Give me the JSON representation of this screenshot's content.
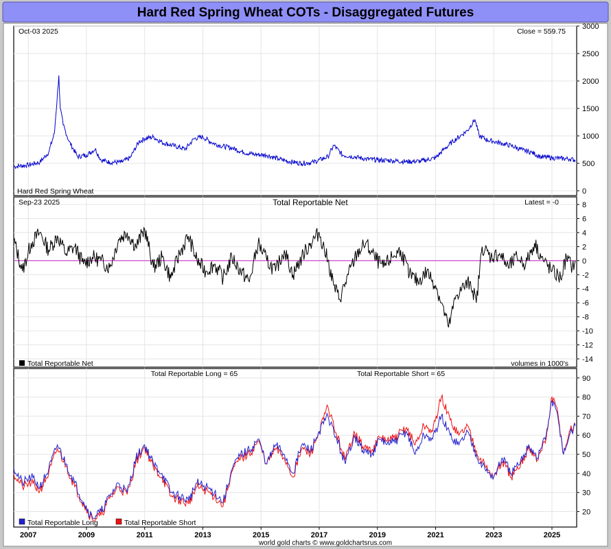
{
  "page_title": "Hard Red Spring Wheat COTs - Disaggregated Futures",
  "footer": "world gold charts © www.goldchartsrus.com",
  "colors": {
    "background": "#c9c9c9",
    "title_bar": "#8f8ff8",
    "panel_bg": "#ffffff",
    "grid": "#e4e4e4",
    "price_line": "#0000cc",
    "net_line": "#000000",
    "zero_line": "#cc33cc",
    "long_line": "#2222cc",
    "short_line": "#ee1111"
  },
  "x_axis": {
    "range": [
      2006.5,
      2025.85
    ],
    "ticks": [
      2007,
      2009,
      2011,
      2013,
      2015,
      2017,
      2019,
      2021,
      2023,
      2025
    ],
    "tick_labels": [
      "2007",
      "2009",
      "2011",
      "2013",
      "2015",
      "2017",
      "2019",
      "2021",
      "2023",
      "2025"
    ]
  },
  "chart_data": [
    {
      "type": "line",
      "name": "price",
      "label_top_left": "Oct-03  2025",
      "label_top_right": "Close = 559.75",
      "legend": "Hard Red Spring Wheat",
      "ylim": [
        0,
        3000
      ],
      "yticks": [
        0,
        500,
        1000,
        1500,
        2000,
        2500,
        3000
      ],
      "ytick_labels": [
        "0",
        "500",
        "1000",
        "1500",
        "2000",
        "2500",
        "3000"
      ],
      "series": [
        {
          "name": "Hard Red Spring Wheat",
          "x": [
            2006.5,
            2007.0,
            2007.4,
            2007.7,
            2007.9,
            2008.05,
            2008.1,
            2008.2,
            2008.4,
            2008.7,
            2009.0,
            2009.3,
            2009.5,
            2009.8,
            2010.2,
            2010.5,
            2010.8,
            2011.0,
            2011.3,
            2011.6,
            2012.0,
            2012.4,
            2012.7,
            2013.0,
            2013.3,
            2013.6,
            2014.0,
            2014.4,
            2014.8,
            2015.2,
            2015.6,
            2016.0,
            2016.4,
            2016.8,
            2017.3,
            2017.5,
            2017.8,
            2018.2,
            2018.6,
            2019.0,
            2019.5,
            2020.0,
            2020.5,
            2021.0,
            2021.3,
            2021.6,
            2021.9,
            2022.1,
            2022.35,
            2022.5,
            2022.8,
            2023.0,
            2023.3,
            2023.6,
            2024.0,
            2024.3,
            2024.6,
            2025.0,
            2025.3,
            2025.6,
            2025.8
          ],
          "y": [
            440,
            470,
            520,
            700,
            1050,
            2100,
            1500,
            1200,
            900,
            620,
            650,
            760,
            560,
            520,
            520,
            600,
            890,
            950,
            980,
            880,
            820,
            760,
            950,
            980,
            880,
            820,
            780,
            700,
            660,
            650,
            580,
            530,
            500,
            520,
            620,
            830,
            650,
            620,
            580,
            560,
            550,
            530,
            540,
            600,
            760,
            900,
            1020,
            1100,
            1300,
            1000,
            920,
            900,
            860,
            820,
            740,
            700,
            620,
            600,
            590,
            580,
            560
          ]
        }
      ]
    },
    {
      "type": "line",
      "name": "net",
      "label_top_left": "Sep-23  2025",
      "title": "Total Reportable Net",
      "label_top_right": "Latest = -0",
      "legend": "Total Reportable Net",
      "units_note": "volumes in 1000's",
      "ylim": [
        -14,
        8
      ],
      "yticks": [
        -14,
        -12,
        -10,
        -8,
        -6,
        -4,
        -2,
        0,
        2,
        4,
        6,
        8
      ],
      "ytick_labels": [
        "-14",
        "-12",
        "-10",
        "-8",
        "-6",
        "-4",
        "-2",
        "0",
        "2",
        "4",
        "6",
        "8"
      ],
      "series": [
        {
          "name": "Total Reportable Net",
          "x": [
            2006.5,
            2006.8,
            2007.1,
            2007.4,
            2007.7,
            2008.0,
            2008.3,
            2008.6,
            2008.9,
            2009.2,
            2009.5,
            2009.8,
            2010.1,
            2010.4,
            2010.7,
            2011.0,
            2011.3,
            2011.6,
            2011.9,
            2012.2,
            2012.5,
            2012.8,
            2013.1,
            2013.4,
            2013.7,
            2014.0,
            2014.3,
            2014.6,
            2014.9,
            2015.2,
            2015.5,
            2015.8,
            2016.1,
            2016.4,
            2016.7,
            2017.0,
            2017.3,
            2017.5,
            2017.7,
            2018.0,
            2018.3,
            2018.6,
            2018.9,
            2019.2,
            2019.5,
            2019.8,
            2020.1,
            2020.4,
            2020.7,
            2021.0,
            2021.2,
            2021.45,
            2021.7,
            2021.9,
            2022.2,
            2022.4,
            2022.6,
            2022.9,
            2023.2,
            2023.5,
            2023.8,
            2024.1,
            2024.4,
            2024.7,
            2025.0,
            2025.3,
            2025.5,
            2025.7,
            2025.8
          ],
          "y": [
            3,
            -1.5,
            2.5,
            4,
            1.5,
            3.5,
            1,
            2,
            -0.5,
            0.5,
            0,
            -1,
            3,
            4,
            2,
            4.5,
            -1,
            0.5,
            -2.5,
            1,
            3.5,
            0,
            -1.5,
            -0.5,
            -2.5,
            0.5,
            -1.5,
            -3,
            2.5,
            0,
            -1.5,
            1.5,
            -2,
            0.5,
            2.5,
            4,
            0,
            -3.5,
            -5.5,
            -2,
            1,
            2.5,
            0.5,
            -1,
            0.5,
            1.5,
            -2,
            -3,
            -1.5,
            -3.5,
            -6,
            -9.5,
            -5,
            -4,
            -3,
            -6,
            2,
            0.5,
            1,
            -1,
            0.5,
            -0.5,
            2.5,
            0,
            -1.5,
            -2.5,
            0.5,
            -1,
            0
          ]
        }
      ]
    },
    {
      "type": "line",
      "name": "long_short",
      "label_long": "Total Reportable Long = 65",
      "label_short": "Total Reportable Short = 65",
      "ylim": [
        13,
        91
      ],
      "yticks": [
        20,
        30,
        40,
        50,
        60,
        70,
        80,
        90
      ],
      "ytick_labels": [
        "20",
        "30",
        "40",
        "50",
        "60",
        "70",
        "80",
        "90"
      ],
      "legend": [
        "Total Reportable Long",
        "Total Reportable Short"
      ],
      "series": [
        {
          "name": "Total Reportable Long",
          "x": [
            2006.5,
            2006.8,
            2007.1,
            2007.4,
            2007.7,
            2008.0,
            2008.3,
            2008.6,
            2008.9,
            2009.2,
            2009.5,
            2009.8,
            2010.1,
            2010.4,
            2010.7,
            2011.0,
            2011.3,
            2011.6,
            2011.9,
            2012.2,
            2012.5,
            2012.8,
            2013.1,
            2013.4,
            2013.7,
            2014.0,
            2014.3,
            2014.6,
            2014.9,
            2015.2,
            2015.5,
            2015.8,
            2016.1,
            2016.4,
            2016.7,
            2017.0,
            2017.3,
            2017.6,
            2017.9,
            2018.2,
            2018.5,
            2018.8,
            2019.1,
            2019.4,
            2019.7,
            2020.0,
            2020.3,
            2020.6,
            2020.9,
            2021.2,
            2021.5,
            2021.8,
            2022.1,
            2022.4,
            2022.7,
            2023.0,
            2023.3,
            2023.6,
            2023.9,
            2024.2,
            2024.5,
            2024.8,
            2025.0,
            2025.2,
            2025.4,
            2025.6,
            2025.8
          ],
          "y": [
            43,
            35,
            38,
            33,
            42,
            55,
            45,
            35,
            25,
            17,
            20,
            28,
            35,
            30,
            48,
            55,
            45,
            40,
            30,
            28,
            26,
            35,
            33,
            30,
            25,
            42,
            50,
            52,
            58,
            45,
            55,
            50,
            40,
            55,
            52,
            62,
            70,
            58,
            45,
            60,
            52,
            50,
            58,
            55,
            58,
            62,
            50,
            60,
            58,
            70,
            60,
            55,
            62,
            50,
            42,
            38,
            48,
            40,
            45,
            55,
            48,
            60,
            78,
            70,
            50,
            60,
            65
          ]
        },
        {
          "name": "Total Reportable Short",
          "x": [
            2006.5,
            2006.8,
            2007.1,
            2007.4,
            2007.7,
            2008.0,
            2008.3,
            2008.6,
            2008.9,
            2009.2,
            2009.5,
            2009.8,
            2010.1,
            2010.4,
            2010.7,
            2011.0,
            2011.3,
            2011.6,
            2011.9,
            2012.2,
            2012.5,
            2012.8,
            2013.1,
            2013.4,
            2013.7,
            2014.0,
            2014.3,
            2014.6,
            2014.9,
            2015.2,
            2015.5,
            2015.8,
            2016.1,
            2016.4,
            2016.7,
            2017.0,
            2017.3,
            2017.6,
            2017.9,
            2018.2,
            2018.5,
            2018.8,
            2019.1,
            2019.4,
            2019.7,
            2020.0,
            2020.3,
            2020.6,
            2020.9,
            2021.2,
            2021.5,
            2021.8,
            2022.1,
            2022.4,
            2022.7,
            2023.0,
            2023.3,
            2023.6,
            2023.9,
            2024.2,
            2024.5,
            2024.8,
            2025.0,
            2025.2,
            2025.4,
            2025.6,
            2025.8
          ],
          "y": [
            40,
            33,
            35,
            31,
            40,
            53,
            44,
            33,
            24,
            16,
            18,
            27,
            33,
            29,
            46,
            54,
            43,
            38,
            28,
            26,
            24,
            33,
            31,
            28,
            23,
            41,
            48,
            50,
            57,
            45,
            53,
            48,
            38,
            53,
            50,
            62,
            75,
            60,
            47,
            62,
            54,
            52,
            59,
            57,
            60,
            64,
            55,
            65,
            62,
            80,
            68,
            60,
            65,
            52,
            44,
            38,
            46,
            38,
            43,
            54,
            47,
            58,
            80,
            72,
            50,
            62,
            65
          ]
        }
      ]
    }
  ]
}
